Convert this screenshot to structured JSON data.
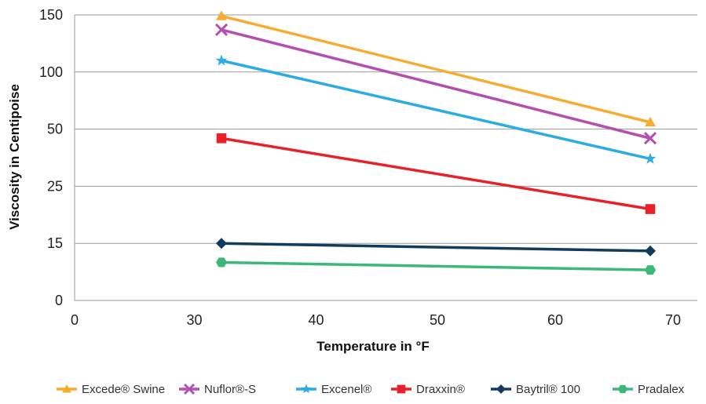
{
  "chart_data": {
    "type": "line",
    "title": "",
    "xlabel": "Temperature in °F",
    "ylabel": "Viscosity in Centipoise",
    "x": [
      32,
      68
    ],
    "xlim": [
      0,
      70
    ],
    "x_ticks": [
      "0",
      "30",
      "40",
      "50",
      "60",
      "70"
    ],
    "y_ticks": [
      "0",
      "15",
      "25",
      "50",
      "100",
      "150"
    ],
    "y_scale": "non-uniform (equal spacing between ticks 0, 15, 25, 50, 100, 150)",
    "grid": "horizontal",
    "legend_position": "bottom",
    "series": [
      {
        "name": "Excede® Swine",
        "marker": "triangle",
        "color": "#F7AB2F",
        "values": [
          149,
          56
        ]
      },
      {
        "name": "Nuflor®-S",
        "marker": "x",
        "color": "#B34FAE",
        "values": [
          137,
          46
        ]
      },
      {
        "name": "Excenel®",
        "marker": "star",
        "color": "#2CACE3",
        "values": [
          110,
          37
        ]
      },
      {
        "name": "Draxxin®",
        "marker": "square",
        "color": "#E8202A",
        "values": [
          46,
          21
        ]
      },
      {
        "name": "Baytril® 100",
        "marker": "diamond",
        "color": "#133B5C",
        "values": [
          15,
          13
        ]
      },
      {
        "name": "Pradalex",
        "marker": "hexagon",
        "color": "#3DB879",
        "values": [
          10,
          8
        ]
      }
    ]
  }
}
